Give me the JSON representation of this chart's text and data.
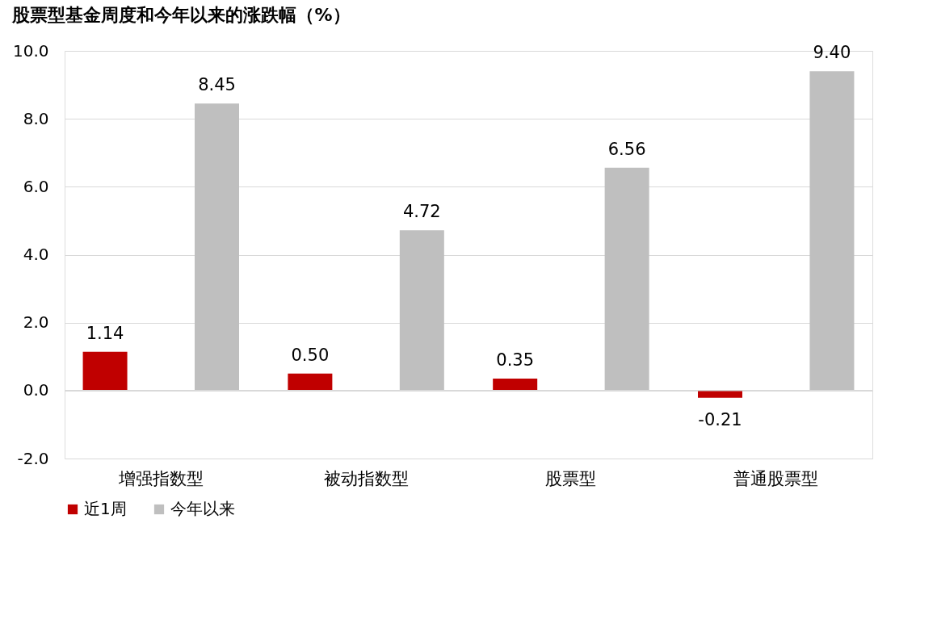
{
  "chart_data": {
    "type": "bar",
    "title": "股票型基金周度和今年以来的涨跌幅（%）",
    "categories": [
      "增强指数型",
      "被动指数型",
      "股票型",
      "普通股票型"
    ],
    "series": [
      {
        "name": "近1周",
        "color": "#c00000",
        "values": [
          1.14,
          0.5,
          0.35,
          -0.21
        ],
        "value_labels": [
          "1.14",
          "0.50",
          "0.35",
          "-0.21"
        ]
      },
      {
        "name": "今年以来",
        "color": "#bfbfbf",
        "values": [
          8.45,
          4.72,
          6.56,
          9.4
        ],
        "value_labels": [
          "8.45",
          "4.72",
          "6.56",
          "9.40"
        ]
      }
    ],
    "ylim": [
      -2,
      10
    ],
    "yticks": [
      {
        "value": -2,
        "label": "-2.0"
      },
      {
        "value": 0,
        "label": "0.0"
      },
      {
        "value": 2,
        "label": "2.0"
      },
      {
        "value": 4,
        "label": "4.0"
      },
      {
        "value": 6,
        "label": "6.0"
      },
      {
        "value": 8,
        "label": "8.0"
      },
      {
        "value": 10,
        "label": "10.0"
      }
    ],
    "grid": "y",
    "legend": "bottom"
  }
}
